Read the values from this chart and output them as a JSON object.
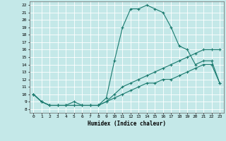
{
  "title": "",
  "xlabel": "Humidex (Indice chaleur)",
  "ylabel": "",
  "xlim": [
    -0.5,
    23.5
  ],
  "ylim": [
    7.5,
    22.5
  ],
  "xticks": [
    0,
    1,
    2,
    3,
    4,
    5,
    6,
    7,
    8,
    9,
    10,
    11,
    12,
    13,
    14,
    15,
    16,
    17,
    18,
    19,
    20,
    21,
    22,
    23
  ],
  "yticks": [
    8,
    9,
    10,
    11,
    12,
    13,
    14,
    15,
    16,
    17,
    18,
    19,
    20,
    21,
    22
  ],
  "bg_color": "#c4e8e8",
  "grid_color": "#aad4d4",
  "line_color": "#1a7a6e",
  "line1_x": [
    0,
    1,
    2,
    3,
    4,
    5,
    6,
    7,
    8,
    9,
    10,
    11,
    12,
    13,
    14,
    15,
    16,
    17,
    18,
    19,
    20,
    21,
    22,
    23
  ],
  "line1_y": [
    10,
    9,
    8.5,
    8.5,
    8.5,
    8.5,
    8.5,
    8.5,
    8.5,
    9.5,
    14.5,
    19,
    21.5,
    21.5,
    22,
    21.5,
    21,
    19,
    16.5,
    16,
    14,
    14.5,
    14.5,
    11.5
  ],
  "line2_x": [
    0,
    1,
    2,
    3,
    4,
    5,
    6,
    7,
    8,
    9,
    10,
    11,
    12,
    13,
    14,
    15,
    16,
    17,
    18,
    19,
    20,
    21,
    22,
    23
  ],
  "line2_y": [
    10,
    9,
    8.5,
    8.5,
    8.5,
    9,
    8.5,
    8.5,
    8.5,
    9,
    10,
    11,
    11.5,
    12,
    12.5,
    13,
    13.5,
    14,
    14.5,
    15,
    15.5,
    16,
    16,
    16
  ],
  "line3_x": [
    0,
    1,
    2,
    3,
    4,
    5,
    6,
    7,
    8,
    9,
    10,
    11,
    12,
    13,
    14,
    15,
    16,
    17,
    18,
    19,
    20,
    21,
    22,
    23
  ],
  "line3_y": [
    10,
    9,
    8.5,
    8.5,
    8.5,
    8.5,
    8.5,
    8.5,
    8.5,
    9,
    9.5,
    10,
    10.5,
    11,
    11.5,
    11.5,
    12,
    12,
    12.5,
    13,
    13.5,
    14,
    14,
    11.5
  ]
}
